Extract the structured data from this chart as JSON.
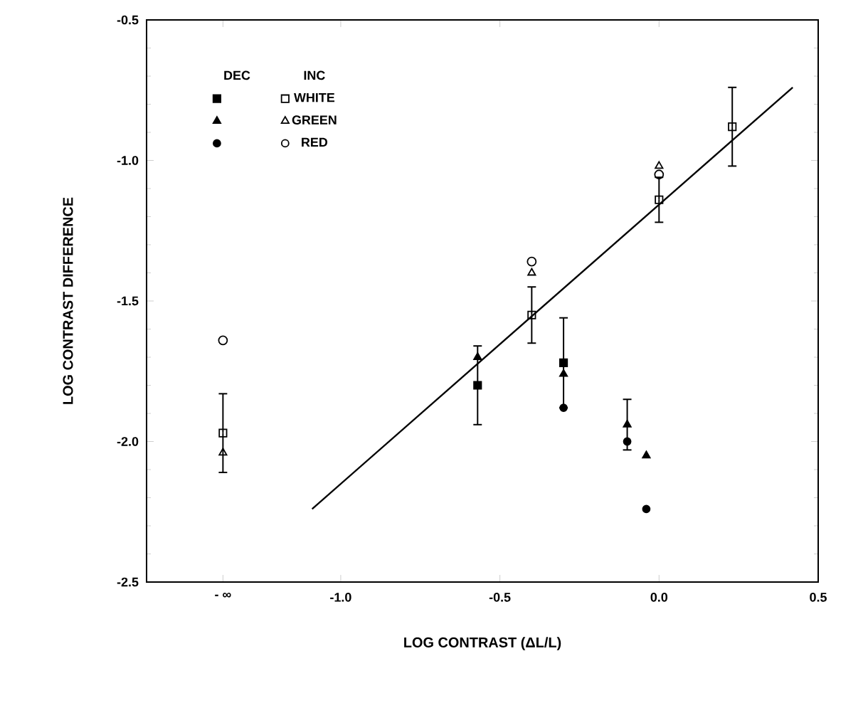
{
  "chart_data": {
    "type": "scatter",
    "xlabel": "LOG CONTRAST  (ΔL/L)",
    "ylabel": "LOG CONTRAST DIFFERENCE",
    "xlim": [
      -1.61,
      0.5
    ],
    "ylim": [
      -2.5,
      -0.5
    ],
    "xticks": [
      {
        "value": -1.37,
        "label": "- ∞"
      },
      {
        "value": -1,
        "label": "-1.0"
      },
      {
        "value": -0.5,
        "label": "-0.5"
      },
      {
        "value": 0,
        "label": "0.0"
      },
      {
        "value": 0.5,
        "label": "0.5"
      }
    ],
    "yticks": [
      {
        "value": -2.5,
        "label": "-2.5"
      },
      {
        "value": -2,
        "label": "-2.0"
      },
      {
        "value": -1.5,
        "label": "-1.5"
      },
      {
        "value": -1,
        "label": "-1.0"
      },
      {
        "value": -0.5,
        "label": "-0.5"
      }
    ],
    "annotations": [
      "DEC",
      "INC"
    ],
    "legend": "top left",
    "grid": false,
    "series": [
      {
        "marker": "square",
        "color": "#000000",
        "x": [
          -0.57,
          -0.3
        ],
        "values": [
          -1.8,
          -1.72
        ],
        "errors": [
          0.14,
          0.16
        ]
      },
      {
        "marker": "triangle",
        "color": "#000000",
        "x": [
          -0.57,
          -0.3,
          -0.1,
          -0.04
        ],
        "values": [
          -1.7,
          -1.76,
          -1.94,
          -2.05
        ],
        "errors": [
          null,
          null,
          0.09,
          null
        ]
      },
      {
        "marker": "circle",
        "color": "#000000",
        "x": [
          -0.3,
          -0.1,
          -0.04
        ],
        "values": [
          -1.88,
          -2.0,
          -2.24
        ]
      },
      {
        "name": "WHITE",
        "marker": "square",
        "color": "#000000",
        "x": [
          -1.37,
          -0.4,
          0.0,
          0.23
        ],
        "values": [
          -1.97,
          -1.55,
          -1.14,
          -0.88
        ],
        "errors": [
          0.14,
          0.1,
          0.08,
          0.14
        ]
      },
      {
        "name": "GREEN",
        "marker": "triangle",
        "color": "#000000",
        "x": [
          -1.37,
          -0.4,
          0.0
        ],
        "values": [
          -2.04,
          -1.4,
          -1.02
        ]
      },
      {
        "name": "RED",
        "marker": "circle",
        "color": "#000000",
        "x": [
          -1.37,
          -0.4,
          0.0
        ],
        "values": [
          -1.64,
          -1.36,
          -1.05
        ]
      },
      {
        "type": "line",
        "marker": "none",
        "line_style": "solid",
        "color": "#000000",
        "x": [
          -1.09,
          0.42
        ],
        "values": [
          -2.24,
          -0.74
        ]
      }
    ]
  }
}
